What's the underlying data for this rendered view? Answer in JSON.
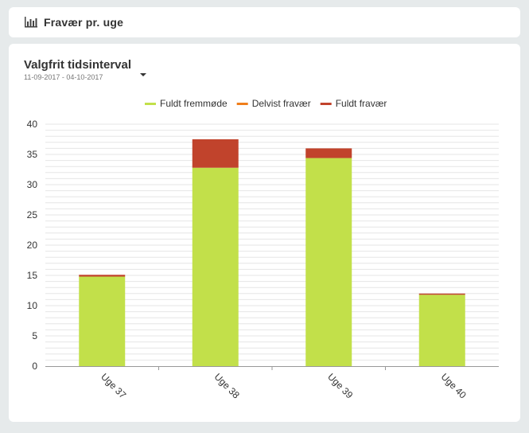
{
  "header": {
    "icon": "bar-chart-icon",
    "title": "Fravær pr. uge"
  },
  "range_selector": {
    "title": "Valgfrit tidsinterval",
    "dates": "11-09-2017 - 04-10-2017",
    "caret_icon": "caret-down-icon"
  },
  "colors": {
    "fuldt_fremmode": "#c2e04a",
    "delvist_fravaer": "#f07e1b",
    "fuldt_fravaer": "#c1432c",
    "grid": "#e6e6e6",
    "axis": "#999999"
  },
  "chart_data": {
    "type": "bar",
    "stacked": true,
    "categories": [
      "Uge 37",
      "Uge 38",
      "Uge 39",
      "Uge 40"
    ],
    "series": [
      {
        "name": "Fuldt fremmøde",
        "values": [
          14.8,
          32.8,
          34.4,
          11.8
        ]
      },
      {
        "name": "Delvist fravær",
        "values": [
          0,
          0,
          0,
          0
        ]
      },
      {
        "name": "Fuldt fravær",
        "values": [
          0.3,
          4.7,
          1.6,
          0.2
        ]
      }
    ],
    "ylim": [
      0,
      40
    ],
    "yticks": [
      0,
      5,
      10,
      15,
      20,
      25,
      30,
      35,
      40
    ],
    "grid": true,
    "legend": "top-center"
  }
}
